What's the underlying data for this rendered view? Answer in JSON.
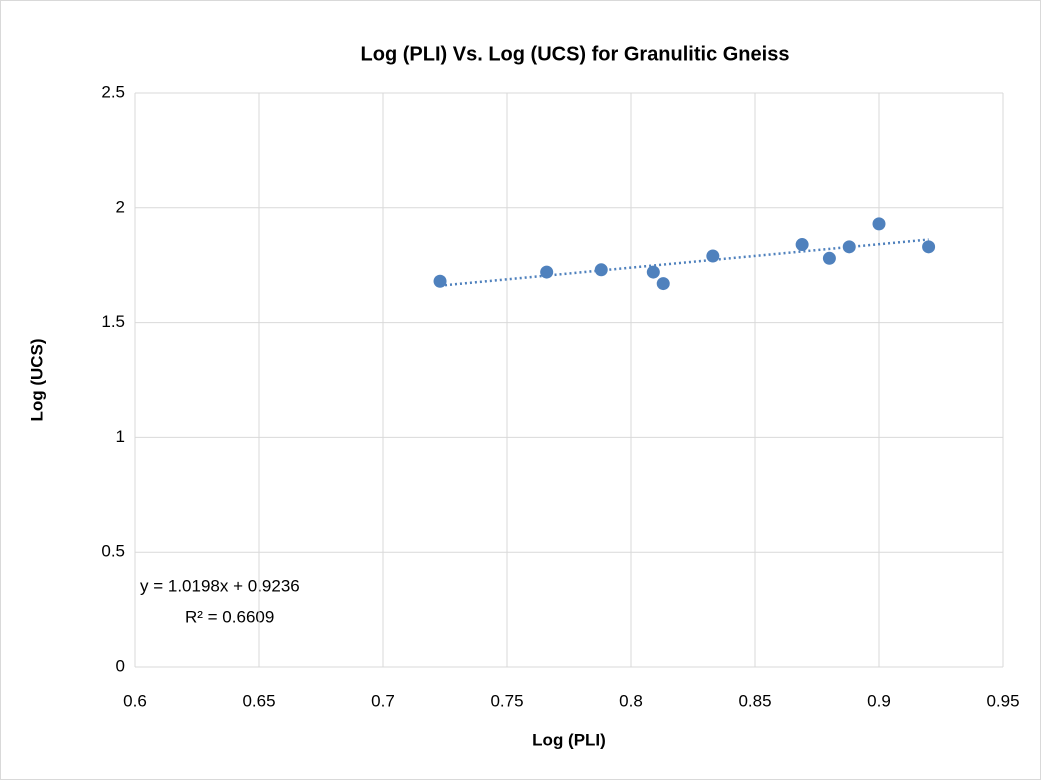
{
  "chart_data": {
    "type": "scatter",
    "title": "Log (PLI) Vs. Log (UCS) for Granulitic Gneiss",
    "x_label": "Log (PLI)",
    "y_label": "Log (UCS)",
    "x": [
      0.723,
      0.766,
      0.788,
      0.809,
      0.813,
      0.833,
      0.869,
      0.88,
      0.888,
      0.9,
      0.92
    ],
    "values": [
      1.68,
      1.72,
      1.73,
      1.72,
      1.67,
      1.79,
      1.84,
      1.78,
      1.83,
      1.93,
      1.83
    ],
    "color": "#4f81bd",
    "xlim": [
      0.6,
      0.95
    ],
    "xticks": [
      0.6,
      0.65,
      0.7,
      0.75,
      0.8,
      0.85,
      0.9,
      0.95
    ],
    "ylim": [
      0,
      2.5
    ],
    "yticks": [
      0,
      0.5,
      1,
      1.5,
      2,
      2.5
    ],
    "grid": true,
    "trendline": {
      "slope": 1.0198,
      "intercept": 0.9236,
      "equation": "y = 1.0198x + 0.9236",
      "r_squared_label": "R² = 0.6609"
    }
  }
}
